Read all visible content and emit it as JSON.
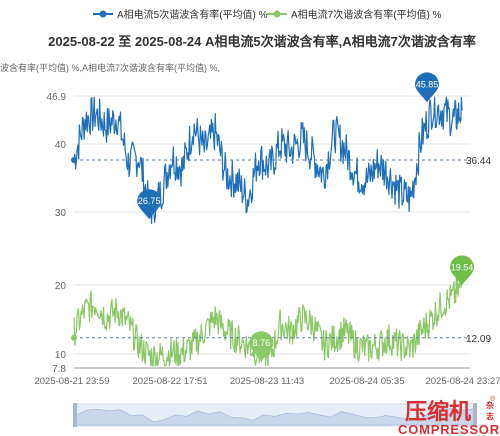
{
  "chart_data": {
    "type": "line",
    "title": "2025-08-22  至 2025-08-24 A相电流5次谐波含有率,A相电流7次谐波含有率",
    "legend": [
      {
        "name": "A相电流5次谐波含有率(平均值) %",
        "color": "#1f6fb8"
      },
      {
        "name": "A相电流7次谐波含有率(平均值) %",
        "color": "#8bc867"
      }
    ],
    "legend_position": "top-center",
    "ylabel_text": "波含有率(平均值) %,A相电流7次谐波含有率(平均值) %,",
    "x_tick_labels": [
      "2025-08-21 23:59",
      "2025-08-22 17:51",
      "2025-08-23 11:43",
      "2025-08-24 05:35",
      "2025-08-24 23:27"
    ],
    "x_range": [
      "2025-08-21 23:59",
      "2025-08-24 23:27"
    ],
    "panels": [
      {
        "series": "A相电流5次谐波含有率(平均值) %",
        "y_tick_labels": [
          "30",
          "40",
          "46.9"
        ],
        "ylim": [
          24,
          46.9
        ],
        "max_marker": {
          "label": "45.85",
          "x": "2025-08-24 17:00",
          "y": 45.85
        },
        "min_marker": {
          "label": "26.75",
          "x": "2025-08-22 13:50",
          "y": 26.75
        },
        "avg_line": {
          "label": "36.44",
          "y": 36.44
        }
      },
      {
        "series": "A相电流7次谐波含有率(平均值) %",
        "y_tick_labels": [
          "7.8",
          "10",
          "20"
        ],
        "ylim": [
          7.8,
          22
        ],
        "max_marker": {
          "label": "19.54",
          "x": "2025-08-24 23:27",
          "y": 19.54
        },
        "min_marker": {
          "label": "8.76",
          "x": "2025-08-23 10:30",
          "y": 8.76
        },
        "avg_line": {
          "label": "12.09",
          "y": 12.09
        }
      }
    ],
    "series": [
      {
        "name": "A相电流5次谐波含有率(平均值) %",
        "x": [
          "2025-08-21 23:59",
          "2025-08-22 01:59",
          "2025-08-22 03:59",
          "2025-08-22 05:59",
          "2025-08-22 07:59",
          "2025-08-22 09:59",
          "2025-08-22 11:59",
          "2025-08-22 13:59",
          "2025-08-22 15:59",
          "2025-08-22 17:59",
          "2025-08-22 19:59",
          "2025-08-22 21:59",
          "2025-08-22 23:59",
          "2025-08-23 01:59",
          "2025-08-23 03:59",
          "2025-08-23 05:59",
          "2025-08-23 07:59",
          "2025-08-23 09:59",
          "2025-08-23 11:59",
          "2025-08-23 13:59",
          "2025-08-23 15:59",
          "2025-08-23 17:59",
          "2025-08-23 19:59",
          "2025-08-23 21:59",
          "2025-08-23 23:59",
          "2025-08-24 01:59",
          "2025-08-24 03:59",
          "2025-08-24 05:59",
          "2025-08-24 07:59",
          "2025-08-24 09:59",
          "2025-08-24 11:59",
          "2025-08-24 13:59",
          "2025-08-24 15:59",
          "2025-08-24 17:59",
          "2025-08-24 19:59",
          "2025-08-24 21:59",
          "2025-08-24 23:27"
        ],
        "values": [
          36.5,
          43,
          44,
          42,
          43.5,
          36,
          37,
          28,
          31,
          37,
          35,
          42,
          38,
          41,
          34,
          33,
          30,
          37,
          35,
          39,
          38,
          40,
          37,
          34,
          41,
          38,
          34,
          33,
          36,
          34,
          31,
          30,
          40,
          45,
          44.5,
          43,
          44.5
        ]
      },
      {
        "name": "A相电流7次谐波含有率(平均值) %",
        "x": [
          "2025-08-21 23:59",
          "2025-08-22 01:59",
          "2025-08-22 03:59",
          "2025-08-22 05:59",
          "2025-08-22 07:59",
          "2025-08-22 09:59",
          "2025-08-22 11:59",
          "2025-08-22 13:59",
          "2025-08-22 15:59",
          "2025-08-22 17:59",
          "2025-08-22 19:59",
          "2025-08-22 21:59",
          "2025-08-22 23:59",
          "2025-08-23 01:59",
          "2025-08-23 03:59",
          "2025-08-23 05:59",
          "2025-08-23 07:59",
          "2025-08-23 09:59",
          "2025-08-23 11:59",
          "2025-08-23 13:59",
          "2025-08-23 15:59",
          "2025-08-23 17:59",
          "2025-08-23 19:59",
          "2025-08-23 21:59",
          "2025-08-23 23:59",
          "2025-08-24 01:59",
          "2025-08-24 03:59",
          "2025-08-24 05:59",
          "2025-08-24 07:59",
          "2025-08-24 09:59",
          "2025-08-24 11:59",
          "2025-08-24 13:59",
          "2025-08-24 15:59",
          "2025-08-24 17:59",
          "2025-08-24 19:59",
          "2025-08-24 21:59",
          "2025-08-24 23:27"
        ],
        "values": [
          13,
          16,
          17,
          15,
          16,
          14,
          11,
          9.5,
          9.5,
          10,
          10,
          11,
          13,
          15,
          13,
          12,
          11,
          10,
          9,
          14,
          13,
          15,
          14,
          11,
          12,
          13,
          11,
          10.5,
          11,
          12,
          11,
          10.5,
          13,
          15,
          17,
          18,
          19.5
        ]
      }
    ]
  },
  "zoom_slider": {
    "start_percent": 0,
    "end_percent": 100
  },
  "watermark": {
    "cn": "压缩机",
    "side": "杂志",
    "en": "COMPRESSOR",
    "reg": "®"
  }
}
